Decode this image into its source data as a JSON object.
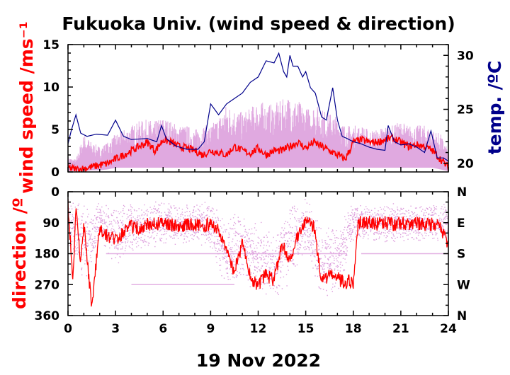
{
  "title": "Fukuoka Univ. (wind speed & direction)",
  "xlabel": "19 Nov 2022",
  "colors": {
    "raw": "#dda0dd",
    "mean": "#ff0000",
    "temperature": "#00008b",
    "axis": "#000000"
  },
  "chart_data": [
    {
      "type": "line",
      "panel": "wind speed",
      "ylabel": "wind speed /ms⁻¹",
      "y2label": "temp. /ºC",
      "xlim": [
        0,
        24
      ],
      "ylim": [
        0,
        15
      ],
      "y2lim": [
        19.2,
        31
      ],
      "x_ticks": [
        0,
        3,
        6,
        9,
        12,
        15,
        18,
        21,
        24
      ],
      "y_ticks": [
        0,
        5,
        10,
        15
      ],
      "y2_ticks": [
        20,
        25,
        30
      ],
      "series": [
        {
          "kind": "raw wind speed band (min/max)",
          "x": [
            0,
            0.5,
            1,
            1.5,
            2,
            2.5,
            3,
            3.5,
            4,
            4.5,
            5,
            5.5,
            6,
            6.5,
            7,
            7.5,
            8,
            8.5,
            9,
            9.5,
            10,
            10.5,
            11,
            11.5,
            12,
            12.5,
            13,
            13.5,
            14,
            14.5,
            15,
            15.5,
            16,
            16.5,
            17,
            17.5,
            18,
            18.5,
            19,
            19.5,
            20,
            20.5,
            21,
            21.5,
            22,
            22.5,
            23,
            23.5,
            24
          ],
          "low": [
            0.1,
            0.1,
            0.1,
            0.2,
            0.2,
            0.3,
            0.5,
            0.5,
            0.5,
            0.5,
            0.5,
            0.5,
            0.5,
            0.5,
            0.5,
            0.5,
            0.5,
            0.5,
            0.5,
            0.5,
            0.5,
            0.5,
            0.5,
            0.5,
            0.5,
            0.5,
            0.5,
            0.5,
            0.5,
            0.5,
            0.5,
            0.5,
            0.5,
            0.5,
            0.5,
            0.5,
            0.5,
            0.5,
            0.5,
            0.5,
            0.5,
            0.5,
            0.5,
            0.5,
            0.5,
            0.5,
            0.5,
            0.3,
            0.1
          ],
          "high": [
            1.8,
            1.5,
            4.5,
            3.5,
            3.0,
            3.5,
            4.5,
            5.0,
            5.5,
            6.0,
            6.2,
            6.0,
            6.5,
            6.0,
            5.5,
            5.5,
            5.0,
            5.5,
            5.5,
            6.5,
            8.0,
            7.5,
            7.0,
            7.5,
            8.5,
            8.0,
            8.0,
            8.5,
            9.0,
            8.5,
            7.5,
            8.0,
            7.5,
            7.0,
            6.5,
            5.5,
            5.5,
            5.5,
            5.0,
            5.0,
            5.5,
            5.5,
            6.0,
            5.5,
            5.5,
            5.5,
            5.0,
            4.5,
            2.5
          ]
        },
        {
          "name": "wind speed",
          "x": [
            0,
            0.5,
            1,
            1.5,
            2,
            2.5,
            3,
            3.5,
            4,
            4.5,
            5,
            5.5,
            6,
            6.5,
            7,
            7.5,
            8,
            8.5,
            9,
            9.5,
            10,
            10.5,
            11,
            11.5,
            12,
            12.5,
            13,
            13.5,
            14,
            14.5,
            15,
            15.5,
            16,
            16.5,
            17,
            17.5,
            18,
            18.5,
            19,
            19.5,
            20,
            20.5,
            21,
            21.5,
            22,
            22.5,
            23,
            23.5,
            24
          ],
          "y": [
            0.5,
            0.3,
            0.4,
            0.6,
            0.8,
            1.0,
            1.5,
            2.0,
            2.5,
            3.0,
            3.5,
            2.5,
            3.8,
            3.5,
            3.0,
            2.8,
            2.5,
            2.0,
            2.5,
            2.3,
            2.0,
            3.0,
            2.5,
            2.2,
            2.8,
            2.0,
            2.5,
            2.5,
            3.0,
            3.5,
            2.8,
            3.5,
            3.0,
            2.5,
            2.0,
            1.5,
            3.5,
            3.8,
            3.5,
            3.5,
            3.8,
            4.0,
            3.5,
            3.0,
            3.2,
            3.0,
            2.5,
            1.5,
            0.5
          ]
        },
        {
          "name": "temperature",
          "axis": "y2",
          "x": [
            0,
            0.2,
            0.5,
            0.8,
            1.2,
            1.8,
            2.5,
            3.0,
            3.5,
            4.0,
            5.0,
            5.6,
            5.9,
            6.2,
            6.8,
            7.5,
            8.2,
            8.6,
            9.0,
            9.5,
            10.0,
            10.5,
            11.0,
            11.5,
            12.0,
            12.5,
            13.0,
            13.3,
            13.6,
            13.8,
            14.0,
            14.2,
            14.5,
            14.8,
            15.0,
            15.3,
            15.6,
            16.0,
            16.3,
            16.7,
            17.0,
            17.3,
            17.6,
            18.0,
            18.5,
            19.0,
            19.5,
            20.0,
            20.2,
            20.6,
            21.0,
            21.5,
            22.0,
            22.5,
            22.9,
            23.3,
            23.7,
            24.0
          ],
          "y": [
            21.8,
            23.0,
            24.5,
            22.8,
            22.5,
            22.7,
            22.6,
            24.0,
            22.5,
            22.2,
            22.3,
            22.0,
            23.5,
            22.3,
            21.6,
            21.3,
            21.3,
            22.0,
            25.5,
            24.5,
            25.5,
            26.0,
            26.5,
            27.5,
            28.0,
            29.5,
            29.3,
            30.2,
            28.5,
            28.0,
            30.0,
            29.0,
            29.0,
            28.0,
            28.5,
            27.0,
            26.5,
            24.3,
            24.0,
            27.0,
            24.0,
            22.5,
            22.3,
            22.0,
            21.8,
            21.5,
            21.3,
            21.2,
            23.5,
            22.0,
            21.7,
            21.8,
            21.5,
            21.0,
            23.0,
            20.5,
            20.5,
            20.2
          ]
        }
      ]
    },
    {
      "type": "scatter",
      "panel": "wind direction",
      "ylabel": "direction /º",
      "xlim": [
        0,
        24
      ],
      "ylim": [
        360,
        0
      ],
      "x_ticks": [
        0,
        3,
        6,
        9,
        12,
        15,
        18,
        21,
        24
      ],
      "x_tick_labels": [
        "0",
        "3",
        "6",
        "9",
        "12",
        "15",
        "18",
        "21",
        "24"
      ],
      "y_ticks": [
        0,
        90,
        180,
        270,
        360
      ],
      "y_tick_labels": [
        "0",
        "90",
        "180",
        "270",
        "360"
      ],
      "y2_tick_labels": [
        "N",
        "E",
        "S",
        "W",
        "N"
      ],
      "series": [
        {
          "kind": "raw wind direction scatter (center, spread)",
          "x": [
            0,
            1,
            2,
            3,
            4,
            5,
            6,
            7,
            8,
            9,
            10,
            11,
            12,
            13,
            14,
            15,
            16,
            17,
            18,
            19,
            20,
            21,
            22,
            23,
            24
          ],
          "center": [
            90,
            150,
            90,
            130,
            100,
            100,
            90,
            95,
            90,
            100,
            180,
            160,
            200,
            220,
            150,
            100,
            200,
            200,
            90,
            90,
            90,
            90,
            90,
            90,
            90
          ],
          "spread": [
            80,
            120,
            60,
            90,
            80,
            70,
            70,
            60,
            60,
            80,
            120,
            110,
            120,
            110,
            120,
            90,
            110,
            100,
            60,
            50,
            60,
            60,
            60,
            60,
            70
          ]
        },
        {
          "name": "wind direction",
          "x": [
            0,
            0.3,
            0.5,
            0.8,
            1.0,
            1.3,
            1.5,
            2.0,
            2.5,
            3.0,
            3.5,
            4.0,
            4.5,
            5.0,
            5.5,
            6.0,
            6.5,
            7.0,
            7.5,
            8.0,
            8.5,
            9.0,
            9.5,
            10.0,
            10.5,
            11.0,
            11.5,
            12.0,
            12.5,
            13.0,
            13.5,
            14.0,
            14.5,
            15.0,
            15.5,
            16.0,
            16.5,
            17.0,
            17.5,
            17.7,
            18.0,
            18.3,
            19.0,
            19.5,
            20.0,
            20.5,
            21.0,
            21.5,
            22.0,
            22.5,
            23.0,
            23.5,
            24.0
          ],
          "y": [
            30,
            260,
            60,
            200,
            90,
            240,
            330,
            110,
            130,
            140,
            120,
            100,
            105,
            95,
            95,
            90,
            95,
            100,
            95,
            95,
            100,
            95,
            110,
            180,
            230,
            150,
            250,
            270,
            240,
            260,
            150,
            200,
            130,
            90,
            100,
            260,
            240,
            250,
            270,
            260,
            270,
            90,
            90,
            95,
            90,
            95,
            90,
            95,
            90,
            95,
            95,
            100,
            160
          ]
        }
      ]
    }
  ]
}
